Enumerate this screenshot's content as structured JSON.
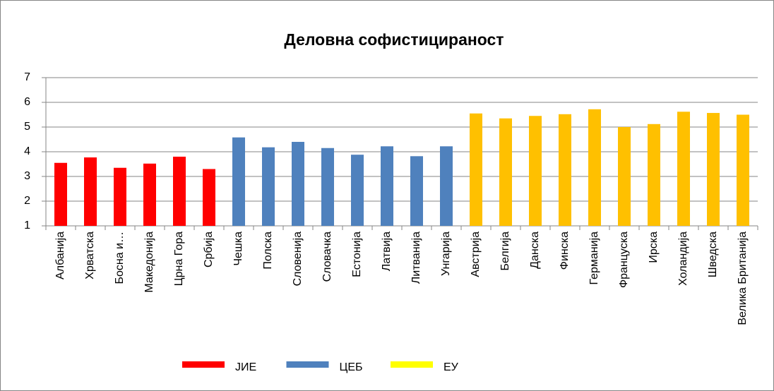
{
  "chart_data": {
    "type": "bar",
    "title": "Деловна софистицираност",
    "categories": [
      "Албанија",
      "Хрватска",
      "Босна и…",
      "Македонија",
      "Црна Гора",
      "Србија",
      "Чешка",
      "Полска",
      "Словенија",
      "Словачка",
      "Естонија",
      "Латвија",
      "Литванија",
      "Унгарија",
      "Австрија",
      "Белгија",
      "Данска",
      "Финска",
      "Германија",
      "Француска",
      "Ирска",
      "Холандија",
      "Шведска",
      "Велика Британија"
    ],
    "series": [
      {
        "name": "ЈИЕ",
        "color": "#ff0000",
        "legend_color": "#ff0000",
        "values": [
          3.55,
          3.77,
          3.35,
          3.52,
          3.8,
          3.3,
          null,
          null,
          null,
          null,
          null,
          null,
          null,
          null,
          null,
          null,
          null,
          null,
          null,
          null,
          null,
          null,
          null,
          null
        ]
      },
      {
        "name": "ЦЕБ",
        "color": "#4f81bd",
        "legend_color": "#4f81bd",
        "values": [
          null,
          null,
          null,
          null,
          null,
          null,
          4.58,
          4.18,
          4.4,
          4.15,
          3.88,
          4.22,
          3.82,
          4.22,
          null,
          null,
          null,
          null,
          null,
          null,
          null,
          null,
          null,
          null
        ]
      },
      {
        "name": "ЕУ",
        "color": "#ffc000",
        "legend_color": "#ffff00",
        "values": [
          null,
          null,
          null,
          null,
          null,
          null,
          null,
          null,
          null,
          null,
          null,
          null,
          null,
          null,
          5.55,
          5.35,
          5.45,
          5.52,
          5.72,
          5.0,
          5.12,
          5.62,
          5.57,
          5.5
        ]
      }
    ],
    "ylim": [
      1,
      7
    ],
    "yticks": [
      1,
      2,
      3,
      4,
      5,
      6,
      7
    ],
    "grid": true,
    "legend": "bottom"
  }
}
